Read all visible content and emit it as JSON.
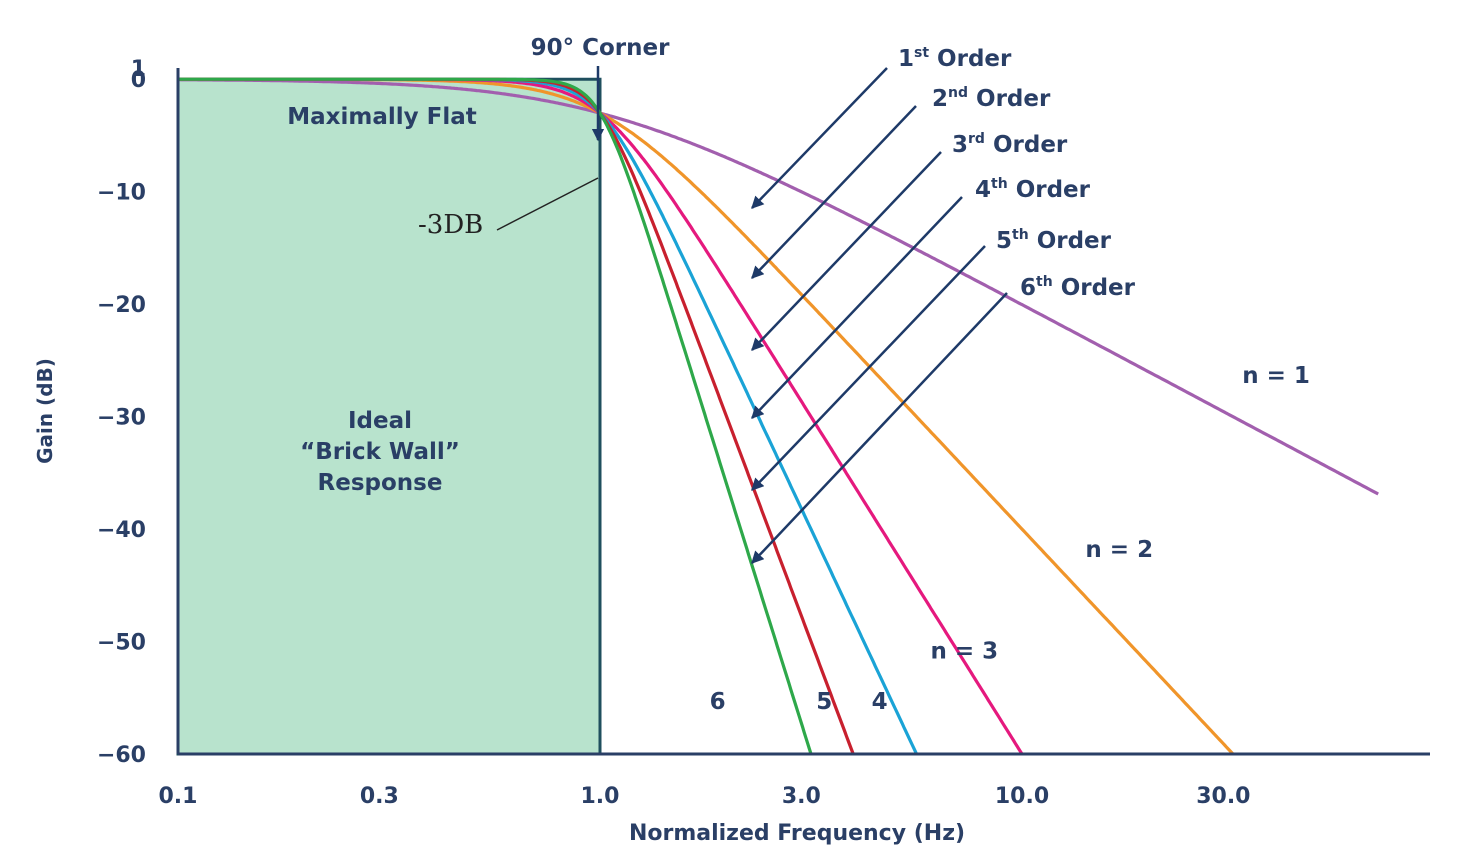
{
  "chart_data": {
    "type": "line",
    "xlabel": "Normalized Frequency (Hz)",
    "ylabel": "Gain (dB)",
    "xscale": "log",
    "xlim": [
      0.1,
      70
    ],
    "ylim": [
      -60,
      1
    ],
    "x_ticks": [
      {
        "value": 0.1,
        "label": "0.1"
      },
      {
        "value": 0.3,
        "label": "0.3"
      },
      {
        "value": 1.0,
        "label": "1.0"
      },
      {
        "value": 3.0,
        "label": "3.0"
      },
      {
        "value": 10.0,
        "label": "10.0"
      },
      {
        "value": 30.0,
        "label": "30.0"
      }
    ],
    "y_ticks": [
      {
        "value": 1,
        "label": "1"
      },
      {
        "value": 0,
        "label": "0"
      },
      {
        "value": -10,
        "label": "−10"
      },
      {
        "value": -20,
        "label": "−20"
      },
      {
        "value": -30,
        "label": "−30"
      },
      {
        "value": -40,
        "label": "−40"
      },
      {
        "value": -50,
        "label": "−50"
      },
      {
        "value": -60,
        "label": "−60"
      }
    ],
    "series": [
      {
        "order": 1,
        "color": "#a25fae",
        "label": "n = 1",
        "label_at": {
          "x": 40,
          "y": -27
        }
      },
      {
        "order": 2,
        "color": "#f0952a",
        "label": "n = 2",
        "label_at": {
          "x": 17,
          "y": -42.5
        }
      },
      {
        "order": 3,
        "color": "#e5197e",
        "label": "n = 3",
        "label_at": {
          "x": 7.3,
          "y": -51.5
        }
      },
      {
        "order": 4,
        "color": "#1aa3d6",
        "label": "4",
        "label_at": {
          "x": 4.6,
          "y": -56
        }
      },
      {
        "order": 5,
        "color": "#c8202e",
        "label": "5",
        "label_at": {
          "x": 3.4,
          "y": -56
        }
      },
      {
        "order": 6,
        "color": "#2ea84a",
        "label": "6",
        "label_at": {
          "x": 1.9,
          "y": -56
        }
      }
    ],
    "order_labels": [
      {
        "base": "1",
        "sup": "st",
        "word": " Order"
      },
      {
        "base": "2",
        "sup": "nd",
        "word": " Order"
      },
      {
        "base": "3",
        "sup": "rd",
        "word": " Order"
      },
      {
        "base": "4",
        "sup": "th",
        "word": " Order"
      },
      {
        "base": "5",
        "sup": "th",
        "word": " Order"
      },
      {
        "base": "6",
        "sup": "th",
        "word": " Order"
      }
    ],
    "ideal_response": {
      "label_lines": [
        "Ideal",
        "“Brick Wall”",
        "Response"
      ],
      "fill": "#b8e3cd",
      "edge": "#1f4f5e",
      "x_from": 0.1,
      "x_to": 1.0,
      "y_top": 0,
      "y_bottom": -60
    },
    "annotations": {
      "corner": "90° Corner",
      "flat": "Maximally Flat",
      "minus3db": "-3DB"
    },
    "colors": {
      "axis": "#2a3f66",
      "arrows": "#1e3a68"
    }
  }
}
